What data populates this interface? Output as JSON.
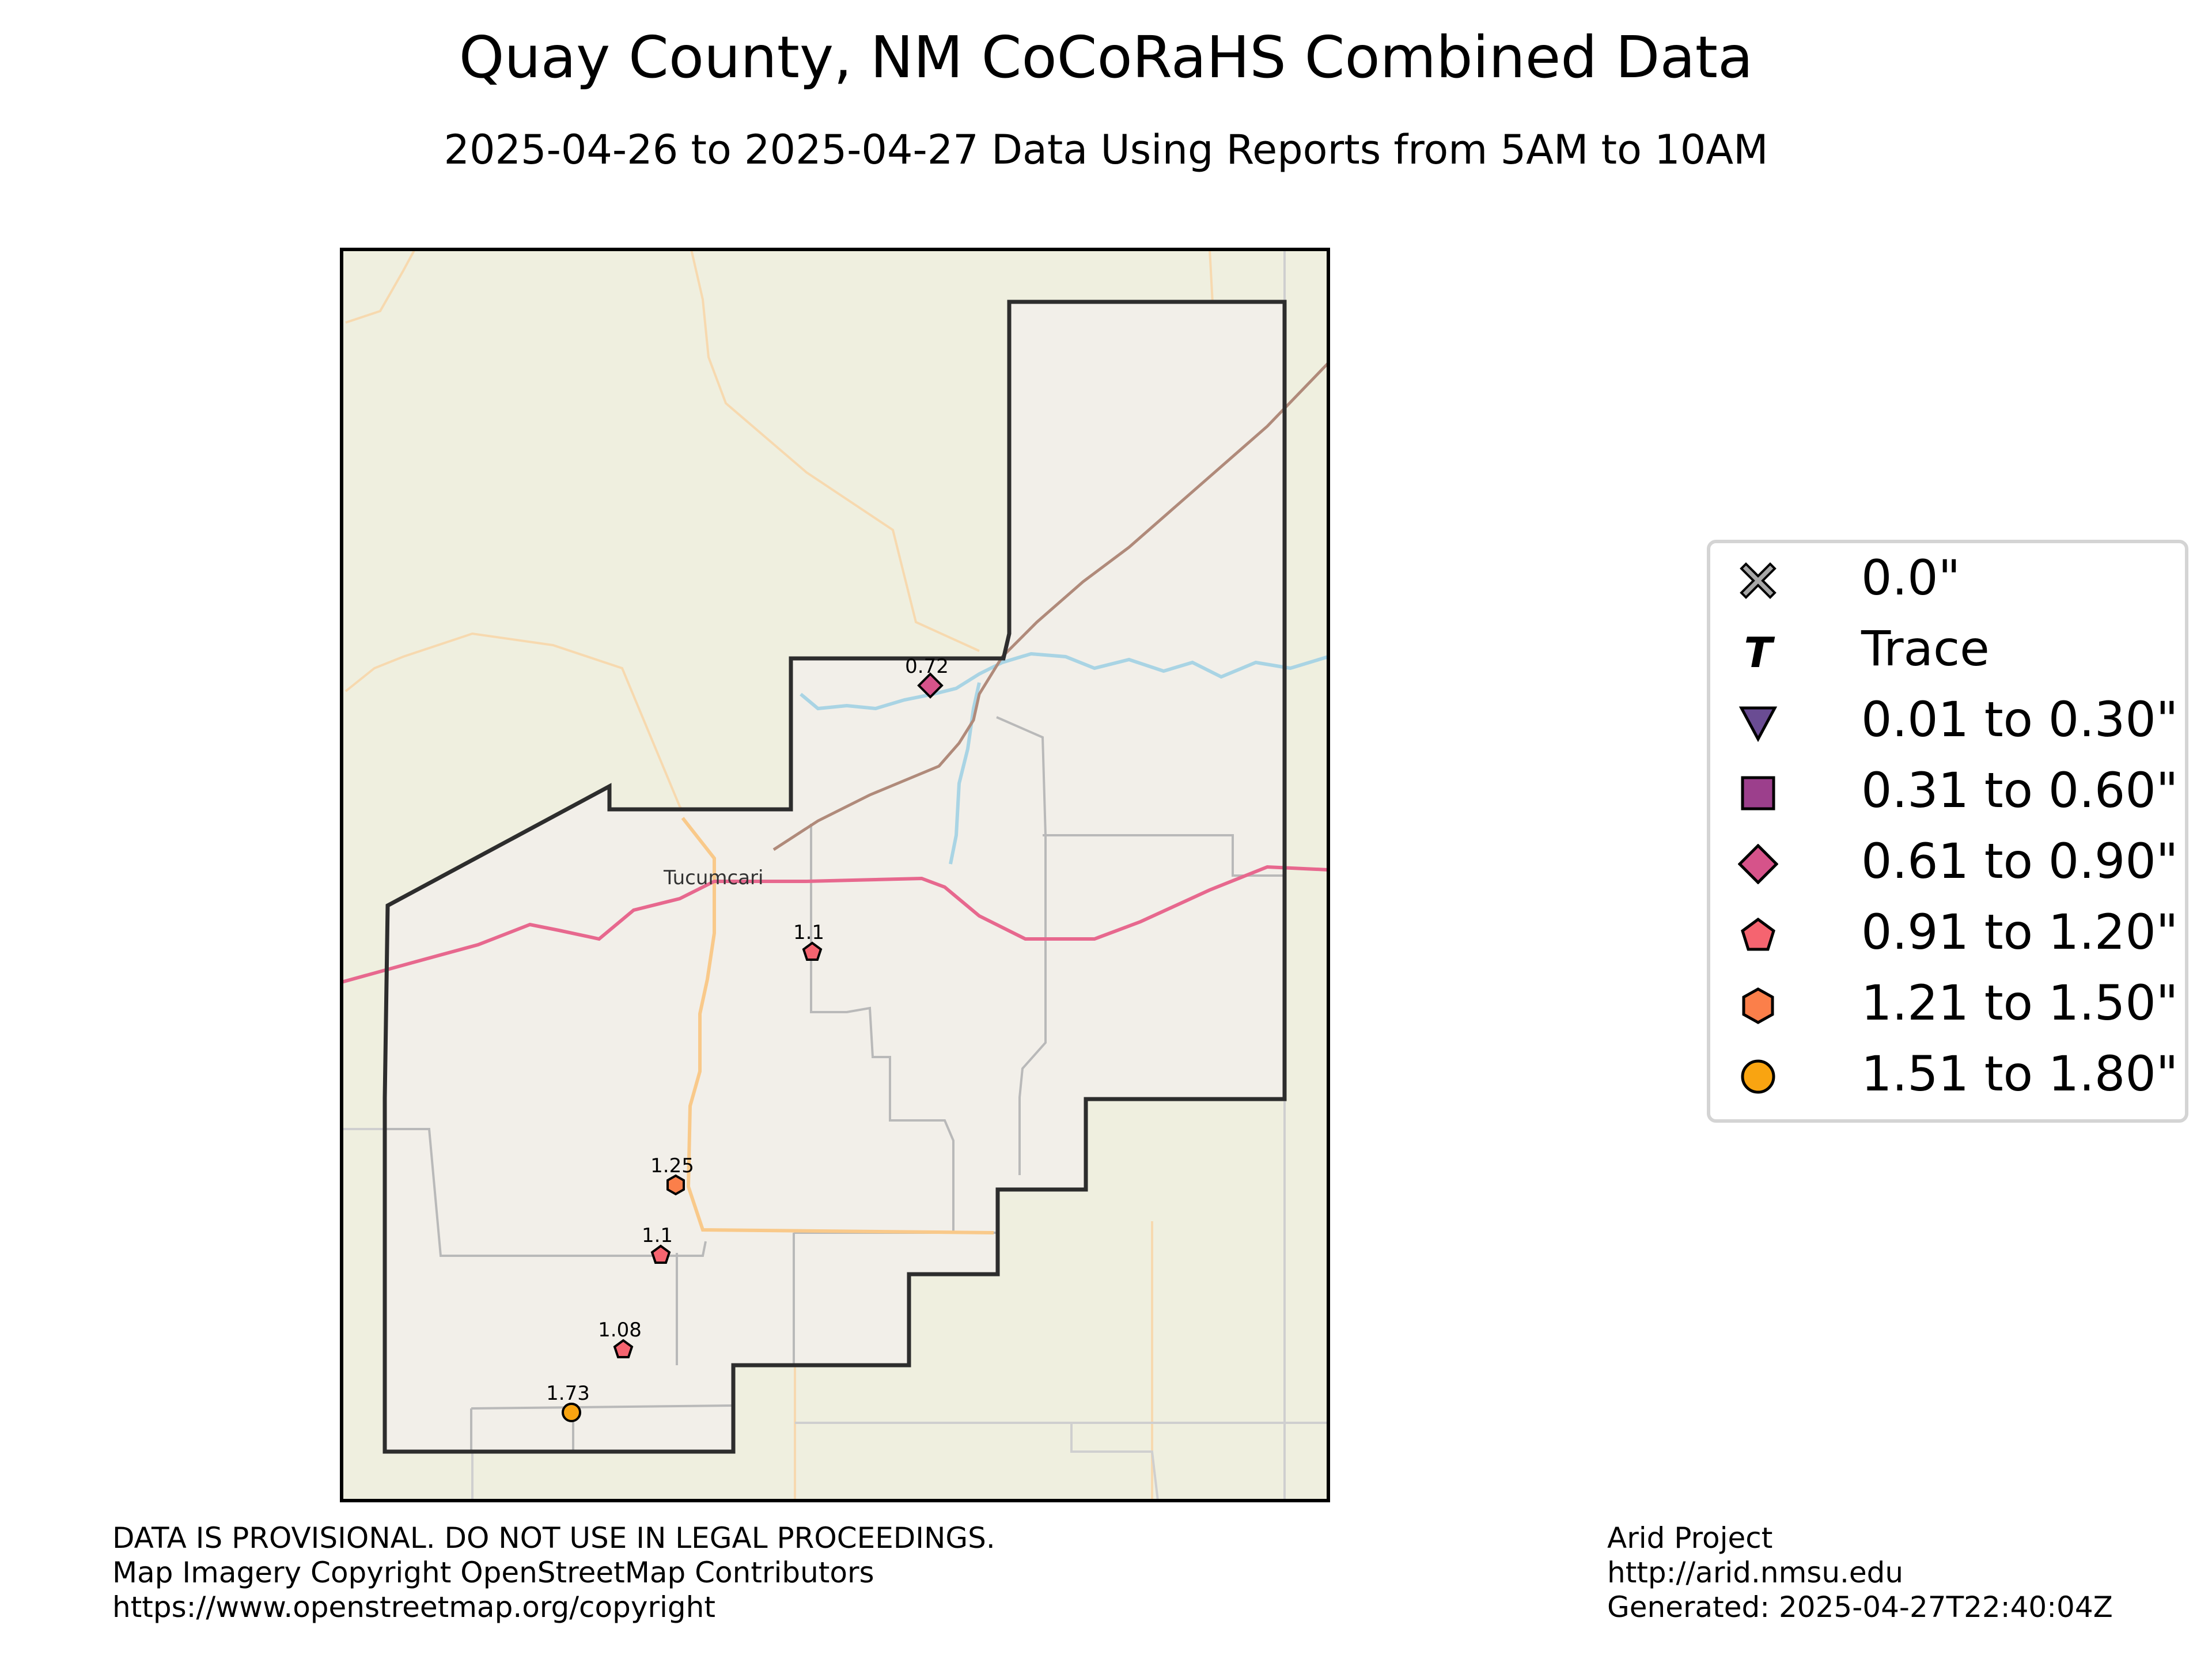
{
  "title": "Quay County, NM CoCoRaHS Combined Data",
  "subtitle": "2025-04-26 to 2025-04-27 Data Using Reports from 5AM to 10AM",
  "map": {
    "place_label": "Tucumcari",
    "colors": {
      "land": "#efefdf",
      "county_fill": "#f2efe9",
      "county_border": "#2d2d2d",
      "highway": "#e7688e",
      "railway": "#b08a7a",
      "water": "#a9d4e4",
      "roads": "#f9c98a"
    }
  },
  "stations": [
    {
      "label": "0.72",
      "value": 0.72,
      "category": "0.61 to 0.90\""
    },
    {
      "label": "1.1",
      "value": 1.1,
      "category": "0.91 to 1.20\""
    },
    {
      "label": "1.25",
      "value": 1.25,
      "category": "1.21 to 1.50\""
    },
    {
      "label": "1.1",
      "value": 1.1,
      "category": "0.91 to 1.20\""
    },
    {
      "label": "1.08",
      "value": 1.08,
      "category": "0.91 to 1.20\""
    },
    {
      "label": "1.73",
      "value": 1.73,
      "category": "1.51 to 1.80\""
    }
  ],
  "legend": {
    "items": [
      {
        "label": "0.0\"",
        "symbol": "x-icon",
        "color": "#a7a7a7"
      },
      {
        "label": "Trace",
        "symbol": "t-icon",
        "color": "#000000"
      },
      {
        "label": "0.01 to 0.30\"",
        "symbol": "triangle-down-icon",
        "color": "#6a4c93"
      },
      {
        "label": "0.31 to 0.60\"",
        "symbol": "square-icon",
        "color": "#9c3f8c"
      },
      {
        "label": "0.61 to 0.90\"",
        "symbol": "diamond-icon",
        "color": "#d6538a"
      },
      {
        "label": "0.91 to 1.20\"",
        "symbol": "pentagon-icon",
        "color": "#f56470"
      },
      {
        "label": "1.21 to 1.50\"",
        "symbol": "hexagon-icon",
        "color": "#fb7f4a"
      },
      {
        "label": "1.51 to 1.80\"",
        "symbol": "circle-icon",
        "color": "#f9a411"
      }
    ]
  },
  "footer": {
    "left": [
      "DATA IS PROVISIONAL. DO NOT USE IN LEGAL PROCEEDINGS.",
      "Map Imagery Copyright OpenStreetMap Contributors",
      "https://www.openstreetmap.org/copyright"
    ],
    "right": [
      "Arid Project",
      "http://arid.nmsu.edu",
      "Generated: 2025-04-27T22:40:04Z"
    ]
  }
}
